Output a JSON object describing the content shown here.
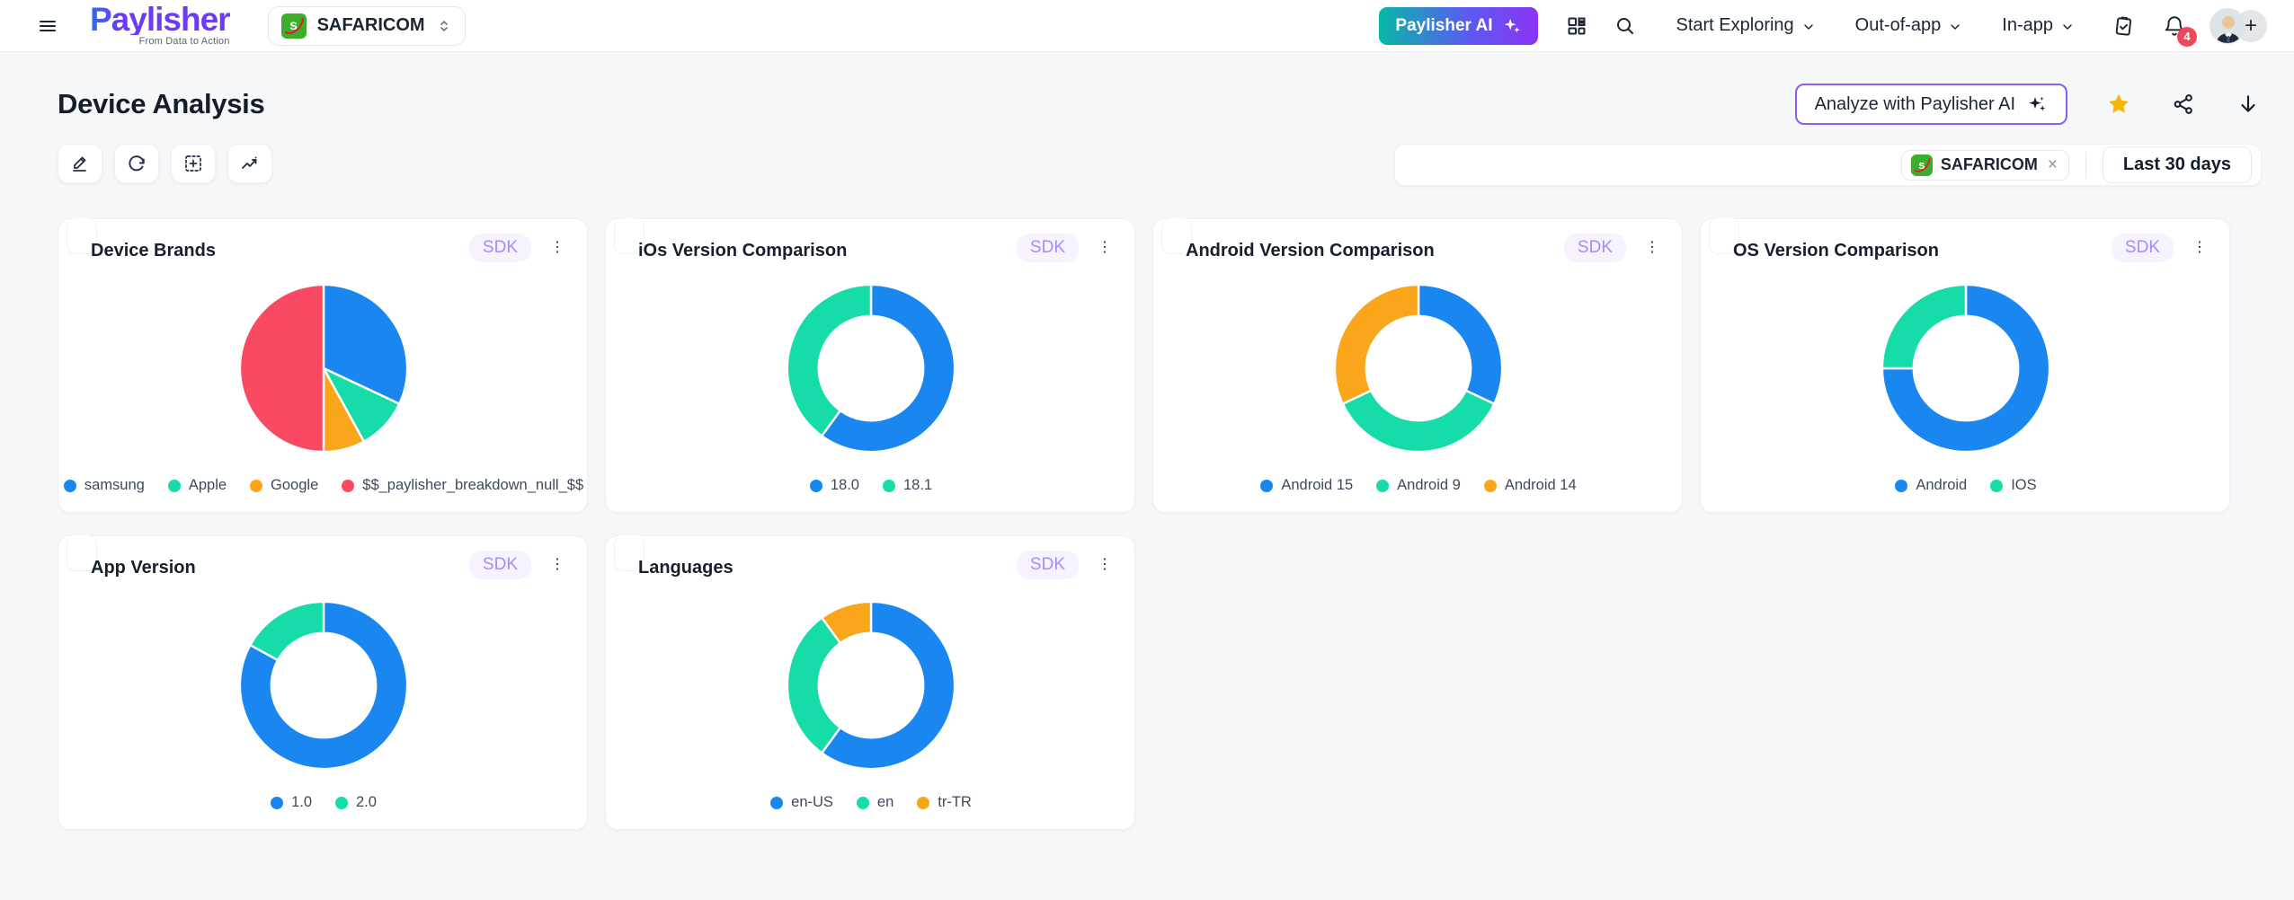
{
  "header": {
    "logo": {
      "name": "Paylisher",
      "tagline": "From Data to Action"
    },
    "org_selector": {
      "label": "SAFARICOM"
    },
    "ai_button_label": "Paylisher AI",
    "nav": [
      {
        "label": "Start Exploring"
      },
      {
        "label": "Out-of-app"
      },
      {
        "label": "In-app"
      }
    ],
    "notifications_count": "4"
  },
  "page": {
    "title": "Device Analysis",
    "analyze_button_label": "Analyze with Paylisher AI",
    "filter_bar": {
      "org_tag": "SAFARICOM",
      "date_range": "Last 30 days"
    }
  },
  "icons": {
    "kebab": "⋮",
    "close": "×",
    "plus": "+",
    "safaricom_letter": "s"
  },
  "colors": {
    "accent_purple": "#8b5cf6",
    "ai_gradient_start": "#07b8a6",
    "ai_gradient_end": "#8a33f5",
    "star_yellow": "#f5b70a",
    "badge_red": "#f0475c",
    "series_blue": "#1a87f0",
    "series_green": "#15dca8",
    "series_orange": "#faa61b",
    "series_red": "#f94a63"
  },
  "chart_data": [
    {
      "type": "pie",
      "title": "Device Brands",
      "badge": "SDK",
      "labels": [
        "samsung",
        "Apple",
        "Google",
        "$$_paylisher_breakdown_null_$$"
      ],
      "values": [
        32,
        10,
        8,
        50
      ],
      "colors": [
        "#1a87f0",
        "#15dca8",
        "#faa61b",
        "#f94a63"
      ],
      "legend_position": "bottom"
    },
    {
      "type": "donut",
      "title": "iOs Version Comparison",
      "badge": "SDK",
      "labels": [
        "18.0",
        "18.1"
      ],
      "values": [
        60,
        40
      ],
      "colors": [
        "#1a87f0",
        "#15dca8"
      ],
      "legend_position": "bottom"
    },
    {
      "type": "donut",
      "title": "Android Version Comparison",
      "badge": "SDK",
      "labels": [
        "Android 15",
        "Android 9",
        "Android 14"
      ],
      "values": [
        32,
        36,
        32
      ],
      "colors": [
        "#1a87f0",
        "#15dca8",
        "#faa61b"
      ],
      "legend_position": "bottom"
    },
    {
      "type": "donut",
      "title": "OS Version Comparison",
      "badge": "SDK",
      "labels": [
        "Android",
        "IOS"
      ],
      "values": [
        75,
        25
      ],
      "colors": [
        "#1a87f0",
        "#15dca8"
      ],
      "legend_position": "bottom"
    },
    {
      "type": "donut",
      "title": "App Version",
      "badge": "SDK",
      "labels": [
        "1.0",
        "2.0"
      ],
      "values": [
        83,
        17
      ],
      "colors": [
        "#1a87f0",
        "#15dca8"
      ],
      "legend_position": "bottom"
    },
    {
      "type": "donut",
      "title": "Languages",
      "badge": "SDK",
      "labels": [
        "en-US",
        "en",
        "tr-TR"
      ],
      "values": [
        60,
        30,
        10
      ],
      "colors": [
        "#1a87f0",
        "#15dca8",
        "#faa61b"
      ],
      "legend_position": "bottom"
    }
  ]
}
